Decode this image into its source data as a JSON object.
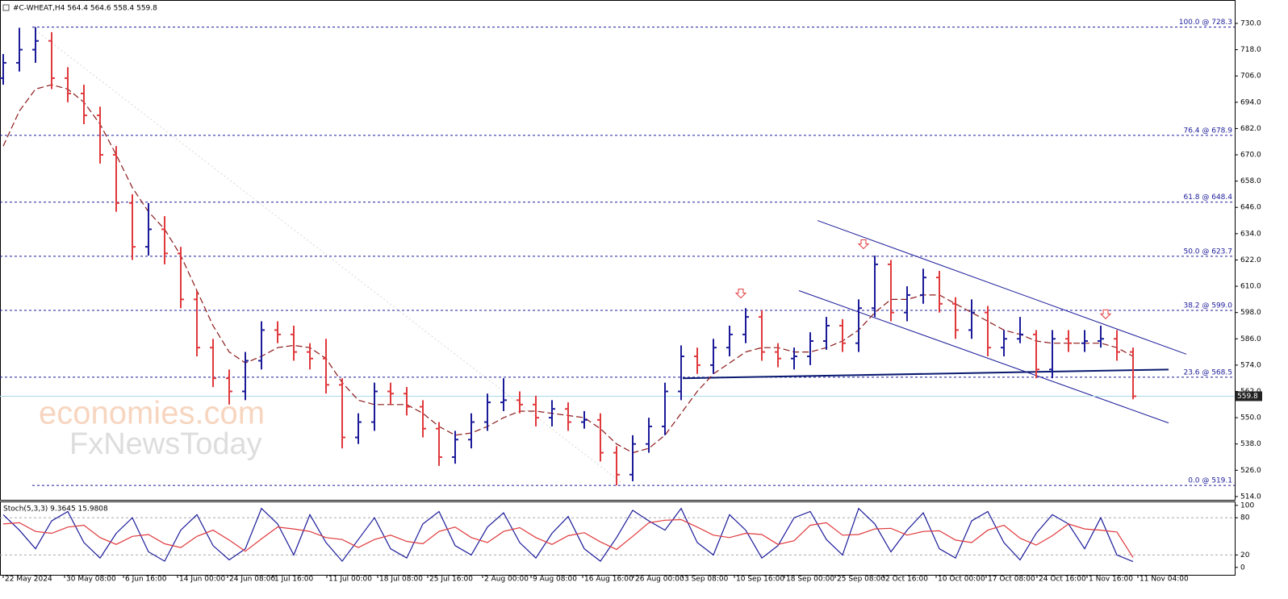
{
  "chart_data": {
    "type": "ohlc",
    "title": "#C-WHEAT,H4  564.4 564.6 558.4 559.8",
    "watermark": [
      "economies.com",
      "FxNewsToday"
    ],
    "xlim": [
      -0.2,
      76.3
    ],
    "ylim": [
      512.5,
      739.2
    ],
    "yticks": [
      {
        "value": 730,
        "label": "730.0"
      },
      {
        "value": 718,
        "label": "718.0"
      },
      {
        "value": 706,
        "label": "706.0"
      },
      {
        "value": 694,
        "label": "694.0"
      },
      {
        "value": 682,
        "label": "682.0"
      },
      {
        "value": 670,
        "label": "670.0"
      },
      {
        "value": 658,
        "label": "658.0"
      },
      {
        "value": 646,
        "label": "646.0"
      },
      {
        "value": 634,
        "label": "634.0"
      },
      {
        "value": 622,
        "label": "622.0"
      },
      {
        "value": 610,
        "label": "610.0"
      },
      {
        "value": 598,
        "label": "598.0"
      },
      {
        "value": 586,
        "label": "586.0"
      },
      {
        "value": 574,
        "label": "574.0"
      },
      {
        "value": 562,
        "label": "562.0"
      },
      {
        "value": 550,
        "label": "550.0"
      },
      {
        "value": 538,
        "label": "538.0"
      },
      {
        "value": 526,
        "label": "526.0"
      },
      {
        "value": 514,
        "label": "514.0"
      }
    ],
    "xticks": [
      {
        "value": 0,
        "label": "22 May 2024"
      },
      {
        "value": 3.8,
        "label": "30 May 08:00"
      },
      {
        "value": 7.45,
        "label": "6 Jun 16:00"
      },
      {
        "value": 10.8,
        "label": "14 Jun 00:00"
      },
      {
        "value": 13.9,
        "label": "24 Jun 08:00"
      },
      {
        "value": 16.7,
        "label": "1 Jul 16:00"
      },
      {
        "value": 20.05,
        "label": "11 Jul 00:00"
      },
      {
        "value": 23.2,
        "label": "18 Jul 08:00"
      },
      {
        "value": 26.3,
        "label": "25 Jul 16:00"
      },
      {
        "value": 29.7,
        "label": "2 Aug 00:00"
      },
      {
        "value": 32.7,
        "label": "9 Aug 08:00"
      },
      {
        "value": 35.9,
        "label": "16 Aug 16:00"
      },
      {
        "value": 39.05,
        "label": "26 Aug 00:00"
      },
      {
        "value": 42.1,
        "label": "3 Sep 08:00"
      },
      {
        "value": 45.3,
        "label": "10 Sep 16:00"
      },
      {
        "value": 48.4,
        "label": "18 Sep 00:00"
      },
      {
        "value": 51.55,
        "label": "25 Sep 08:00"
      },
      {
        "value": 54.55,
        "label": "2 Oct 16:00"
      },
      {
        "value": 57.8,
        "label": "10 Oct 00:00"
      },
      {
        "value": 60.9,
        "label": "17 Oct 08:00"
      },
      {
        "value": 64.05,
        "label": "24 Oct 16:00"
      },
      {
        "value": 67.15,
        "label": "1 Nov 16:00"
      },
      {
        "value": 70.3,
        "label": "11 Nov 04:00"
      }
    ],
    "up_color": "#1b1b9a",
    "down_color": "#e0393c",
    "bars": [
      [
        705,
        716,
        702,
        712
      ],
      [
        712,
        728,
        708,
        718
      ],
      [
        718,
        728.3,
        712,
        722
      ],
      [
        722,
        726,
        700,
        705
      ],
      [
        705,
        710,
        694,
        698
      ],
      [
        698,
        702,
        684,
        688
      ],
      [
        688,
        692,
        666,
        670
      ],
      [
        670,
        674,
        644,
        648
      ],
      [
        648,
        652,
        622,
        628
      ],
      [
        628,
        648,
        624,
        636
      ],
      [
        636,
        642,
        620,
        625
      ],
      [
        625,
        628,
        600,
        604
      ],
      [
        604,
        608,
        578,
        582
      ],
      [
        582,
        586,
        564,
        568
      ],
      [
        568,
        572,
        556,
        562
      ],
      [
        562,
        580,
        558,
        576
      ],
      [
        576,
        594,
        572,
        590
      ],
      [
        590,
        594,
        584,
        588
      ],
      [
        588,
        592,
        576,
        580
      ],
      [
        580,
        584,
        572,
        577
      ],
      [
        577,
        586,
        561,
        565
      ],
      [
        565,
        568,
        536,
        541
      ],
      [
        541,
        552,
        538,
        548
      ],
      [
        548,
        566,
        544,
        562
      ],
      [
        562,
        566,
        556,
        561
      ],
      [
        561,
        564,
        551,
        555
      ],
      [
        555,
        558,
        541,
        545
      ],
      [
        545,
        548,
        528,
        532
      ],
      [
        532,
        544,
        529,
        540
      ],
      [
        540,
        552,
        536,
        548
      ],
      [
        548,
        561,
        544,
        557
      ],
      [
        557,
        568,
        553,
        558
      ],
      [
        558,
        562,
        552,
        556
      ],
      [
        556,
        560,
        546,
        550
      ],
      [
        550,
        558,
        546,
        554
      ],
      [
        554,
        557,
        544,
        548
      ],
      [
        548,
        553,
        545,
        549
      ],
      [
        549,
        552,
        530,
        534
      ],
      [
        534,
        537,
        519.1,
        524
      ],
      [
        524,
        542,
        521,
        538
      ],
      [
        538,
        550,
        534,
        546
      ],
      [
        546,
        566,
        542,
        562
      ],
      [
        562,
        583,
        558,
        578
      ],
      [
        578,
        582,
        570,
        574
      ],
      [
        574,
        586,
        570,
        582
      ],
      [
        582,
        592,
        578,
        588
      ],
      [
        588,
        600,
        584,
        596
      ],
      [
        596,
        599,
        576,
        580
      ],
      [
        580,
        584,
        573,
        577
      ],
      [
        577,
        582,
        572,
        578
      ],
      [
        578,
        589,
        574,
        585
      ],
      [
        585,
        596,
        581,
        592
      ],
      [
        592,
        595,
        580,
        584
      ],
      [
        584,
        604,
        580,
        600
      ],
      [
        600,
        624,
        596,
        620
      ],
      [
        620,
        622,
        594,
        598
      ],
      [
        598,
        610,
        594,
        606
      ],
      [
        606,
        618,
        602,
        614
      ],
      [
        614,
        617,
        598,
        602
      ],
      [
        602,
        605,
        586,
        590
      ],
      [
        590,
        604,
        586,
        598
      ],
      [
        598,
        601,
        578,
        582
      ],
      [
        582,
        590,
        578,
        586
      ],
      [
        586,
        596,
        584,
        588
      ],
      [
        588,
        590,
        568,
        572
      ],
      [
        572,
        590,
        568,
        586
      ],
      [
        586,
        590,
        580,
        584
      ],
      [
        584,
        590,
        580,
        585
      ],
      [
        585,
        592,
        582,
        586
      ],
      [
        586,
        590,
        576,
        580
      ],
      [
        580,
        582,
        558.4,
        559.8
      ]
    ],
    "ma": {
      "color": "#8b1a1a",
      "values": [
        674,
        690,
        700,
        702,
        700,
        694,
        684,
        670,
        655,
        644,
        636,
        624,
        608,
        592,
        580,
        575,
        578,
        582,
        583,
        582,
        577,
        566,
        558,
        556,
        556,
        556,
        552,
        546,
        542,
        543,
        546,
        550,
        553,
        553,
        552,
        551,
        550,
        545,
        538,
        534,
        536,
        542,
        552,
        562,
        570,
        575,
        580,
        582,
        582,
        580,
        580,
        582,
        585,
        590,
        598,
        604,
        604,
        606,
        606,
        602,
        598,
        594,
        590,
        588,
        585,
        584,
        584,
        584,
        584,
        582,
        578
      ]
    },
    "fib_levels": [
      {
        "label": "100.0 @ 728.3",
        "value": 728.3
      },
      {
        "label": "76.4 @ 678.9",
        "value": 678.9
      },
      {
        "label": "61.8 @ 648.4",
        "value": 648.4
      },
      {
        "label": "50.0 @ 623.7",
        "value": 623.7
      },
      {
        "label": "38.2 @ 599.0",
        "value": 599.0
      },
      {
        "label": "23.6 @ 568.5",
        "value": 568.5
      },
      {
        "label": "0.0 @ 519.1",
        "value": 519.1
      }
    ],
    "fib_color": "#1b1b9a",
    "trendlines": [
      {
        "x": [
          50.45,
          73.3
        ],
        "y": [
          640,
          579
        ],
        "color": "#1b1b9a",
        "width": 1
      },
      {
        "x": [
          49.3,
          72.2
        ],
        "y": [
          608,
          547.6
        ],
        "color": "#1b1b9a",
        "width": 1
      },
      {
        "x": [
          42.1,
          72.2
        ],
        "y": [
          568,
          572
        ],
        "color": "#0a1a70",
        "width": 2
      },
      {
        "x": [
          1.8,
          38.55
        ],
        "y": [
          728,
          519
        ],
        "color": "#d8d8d8",
        "width": 1
      }
    ],
    "markers": [
      {
        "x": 45.7,
        "y": 606.5
      },
      {
        "x": 53.3,
        "y": 629
      },
      {
        "x": 68.3,
        "y": 597
      }
    ],
    "marker_color": "#e0393c",
    "stoch": {
      "label": "Stoch(5,3,3) 9.3645 15.9808",
      "ylim": [
        -12,
        105
      ],
      "yticks": [
        100,
        80,
        20,
        0
      ],
      "grid": [
        80,
        20
      ],
      "series": [
        {
          "color": "#1b1b9a",
          "values": [
            85,
            60,
            30,
            75,
            90,
            40,
            15,
            55,
            80,
            25,
            10,
            60,
            85,
            35,
            12,
            30,
            95,
            70,
            20,
            85,
            40,
            10,
            45,
            80,
            30,
            15,
            70,
            90,
            35,
            20,
            65,
            88,
            40,
            15,
            55,
            82,
            30,
            10,
            48,
            92,
            75,
            60,
            95,
            40,
            20,
            85,
            60,
            15,
            35,
            80,
            90,
            45,
            20,
            95,
            70,
            25,
            60,
            88,
            30,
            15,
            75,
            90,
            40,
            12,
            55,
            85,
            70,
            30,
            80,
            20,
            9.3645
          ]
        },
        {
          "color": "#e0393c",
          "values": [
            70,
            72,
            58,
            55,
            65,
            68,
            48,
            37,
            50,
            53,
            38,
            32,
            50,
            60,
            44,
            26,
            46,
            65,
            62,
            58,
            48,
            45,
            32,
            45,
            52,
            42,
            38,
            58,
            65,
            48,
            40,
            58,
            64,
            48,
            37,
            51,
            56,
            41,
            29,
            50,
            72,
            76,
            77,
            65,
            52,
            48,
            55,
            53,
            37,
            43,
            68,
            72,
            52,
            53,
            62,
            63,
            52,
            58,
            59,
            44,
            40,
            60,
            68,
            47,
            36,
            51,
            70,
            62,
            60,
            57,
            15.9808
          ]
        }
      ]
    }
  }
}
